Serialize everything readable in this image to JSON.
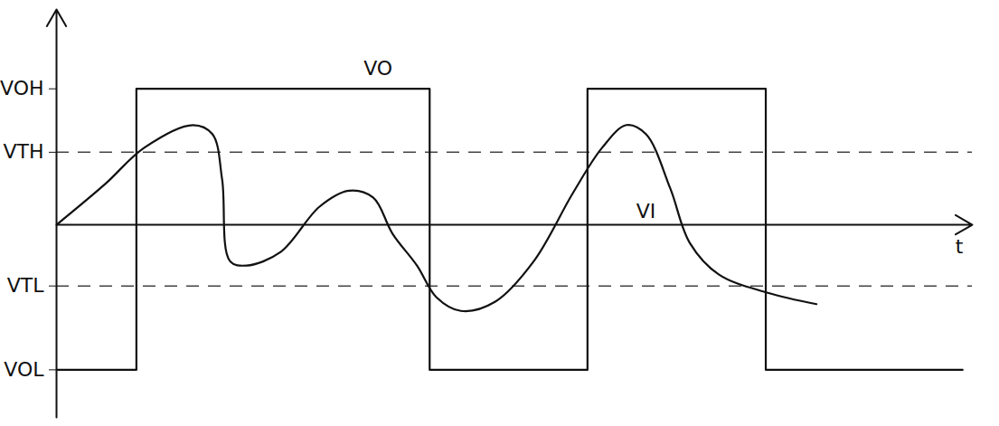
{
  "chart_data": {
    "type": "line",
    "xlabel": "t",
    "xlim": [
      0,
      9.4
    ],
    "xticks": [],
    "ylim": [
      -8.5,
      9.5
    ],
    "yticks": [
      {
        "value": 6,
        "label": "VOH"
      },
      {
        "value": 3.2,
        "label": "VTH"
      },
      {
        "value": -2.7,
        "label": "VTL"
      },
      {
        "value": -6.4,
        "label": "VOL"
      }
    ],
    "reference_lines": [
      3.2,
      -2.7
    ],
    "tick_labels": "y",
    "series": [
      {
        "name": "VO",
        "color": "#111111",
        "line_style": "solid",
        "label_at": [
          3.3,
          6.9
        ],
        "x": [
          0,
          0.82,
          0.82,
          3.83,
          3.83,
          5.45,
          5.45,
          7.28,
          7.28,
          9.3
        ],
        "values": [
          -6.4,
          -6.4,
          6,
          6,
          -6.4,
          -6.4,
          6,
          6,
          -6.4,
          -6.4
        ]
      },
      {
        "name": "VI",
        "color": "#111111",
        "line_style": "smooth",
        "label_at": [
          6.05,
          0.6
        ],
        "x": [
          0,
          0.5,
          0.9,
          1.4,
          1.6,
          1.7,
          1.78,
          1.95,
          2.3,
          2.7,
          3.0,
          3.25,
          3.45,
          3.7,
          3.9,
          4.15,
          4.5,
          4.9,
          5.3,
          5.6,
          5.85,
          6.05,
          6.3,
          6.5,
          6.8,
          7.3,
          7.8
        ],
        "values": [
          0,
          1.8,
          3.4,
          4.4,
          4.0,
          2.0,
          -1.6,
          -1.8,
          -1.2,
          0.8,
          1.5,
          1.2,
          -0.4,
          -1.8,
          -3.2,
          -3.8,
          -3.4,
          -1.6,
          1.4,
          3.4,
          4.4,
          4.0,
          1.6,
          -0.8,
          -2.2,
          -3.0,
          -3.5
        ]
      }
    ]
  }
}
